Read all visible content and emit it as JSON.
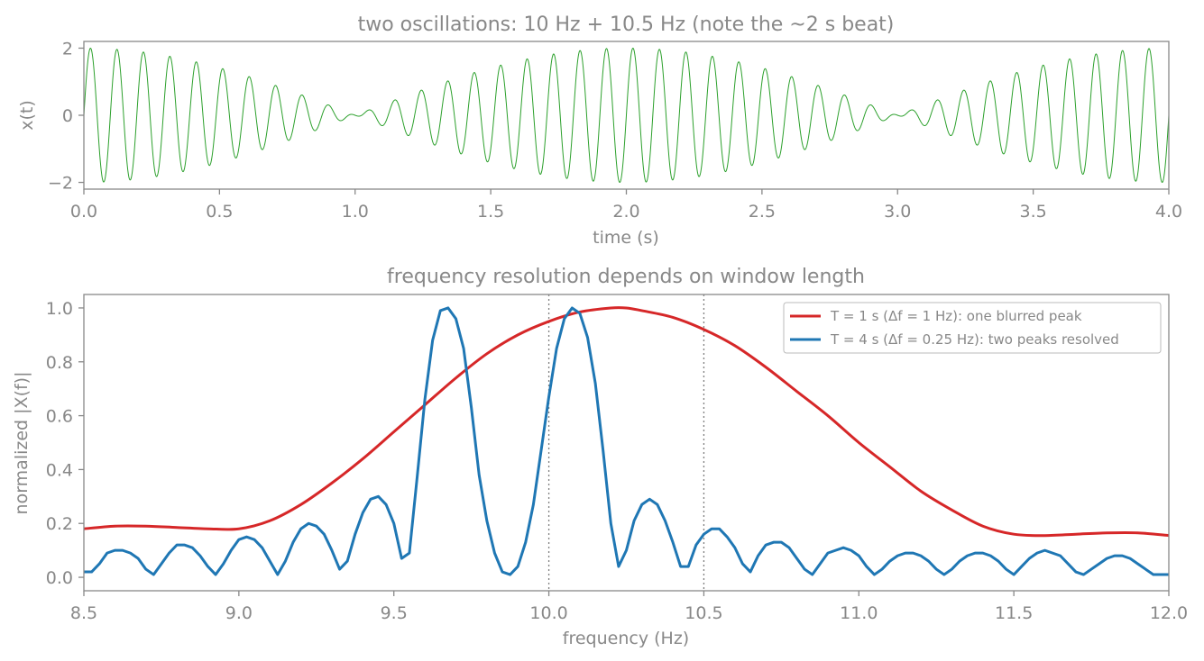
{
  "colors": {
    "signal": "#2ca02c",
    "short_window": "#d62728",
    "long_window": "#1f77b4",
    "spine": "#888888",
    "text": "#888888",
    "marker_line": "#808080"
  },
  "chart_data": [
    {
      "type": "line",
      "title": "two oscillations: 10 Hz + 10.5 Hz (note the ~2 s beat)",
      "xlabel": "time (s)",
      "ylabel": "x(t)",
      "xlim": [
        0,
        4
      ],
      "ylim": [
        -2.2,
        2.2
      ],
      "xticks": [
        "0.0",
        "0.5",
        "1.0",
        "1.5",
        "2.0",
        "2.5",
        "3.0",
        "3.5",
        "4.0"
      ],
      "yticks": [
        "2",
        "0",
        "−2"
      ],
      "grid": false,
      "series": [
        {
          "components_hz": [
            10,
            10.5
          ],
          "amplitude_each": 1,
          "beat_period_s": 2,
          "color_key": "signal"
        }
      ]
    },
    {
      "type": "line",
      "title": "frequency resolution depends on window length",
      "xlabel": "frequency (Hz)",
      "ylabel": "normalized |X(f)|",
      "xlim": [
        8.5,
        12.0
      ],
      "ylim": [
        -0.05,
        1.05
      ],
      "xticks": [
        "8.5",
        "9.0",
        "9.5",
        "10.0",
        "10.5",
        "11.0",
        "11.5",
        "12.0"
      ],
      "yticks": [
        "0.0",
        "0.2",
        "0.4",
        "0.6",
        "0.8",
        "1.0"
      ],
      "grid": false,
      "legend_position": "top-right",
      "vertical_markers_hz": [
        10.0,
        10.5
      ],
      "series": [
        {
          "name": "T = 1 s  (Δf = 1 Hz): one blurred peak",
          "color_key": "short_window",
          "x": [
            8.5,
            8.6,
            8.7,
            8.8,
            8.9,
            9.0,
            9.1,
            9.2,
            9.3,
            9.4,
            9.5,
            9.6,
            9.7,
            9.8,
            9.9,
            10.0,
            10.1,
            10.2,
            10.25,
            10.3,
            10.4,
            10.5,
            10.6,
            10.7,
            10.8,
            10.9,
            11.0,
            11.1,
            11.2,
            11.3,
            11.4,
            11.5,
            11.6,
            11.7,
            11.8,
            11.9,
            12.0
          ],
          "y": [
            0.18,
            0.19,
            0.19,
            0.185,
            0.18,
            0.18,
            0.21,
            0.27,
            0.35,
            0.44,
            0.54,
            0.64,
            0.74,
            0.83,
            0.9,
            0.95,
            0.985,
            1.0,
            1.0,
            0.99,
            0.965,
            0.92,
            0.86,
            0.78,
            0.69,
            0.6,
            0.5,
            0.41,
            0.32,
            0.25,
            0.19,
            0.16,
            0.155,
            0.16,
            0.165,
            0.165,
            0.155
          ]
        },
        {
          "name": "T = 4 s  (Δf = 0.25 Hz): two peaks resolved",
          "color_key": "long_window",
          "x": [
            8.5,
            8.525,
            8.55,
            8.575,
            8.6,
            8.625,
            8.65,
            8.675,
            8.7,
            8.725,
            8.75,
            8.775,
            8.8,
            8.825,
            8.85,
            8.875,
            8.9,
            8.925,
            8.95,
            8.975,
            9.0,
            9.025,
            9.05,
            9.075,
            9.1,
            9.125,
            9.15,
            9.175,
            9.2,
            9.225,
            9.25,
            9.275,
            9.3,
            9.325,
            9.35,
            9.375,
            9.4,
            9.425,
            9.45,
            9.475,
            9.5,
            9.525,
            9.55,
            9.575,
            9.6,
            9.625,
            9.65,
            9.675,
            9.7,
            9.725,
            9.75,
            9.775,
            9.8,
            9.825,
            9.85,
            9.875,
            9.9,
            9.925,
            9.95,
            9.975,
            10.0,
            10.025,
            10.05,
            10.075,
            10.1,
            10.125,
            10.15,
            10.175,
            10.2,
            10.225,
            10.25,
            10.275,
            10.3,
            10.325,
            10.35,
            10.375,
            10.4,
            10.425,
            10.45,
            10.475,
            10.5,
            10.525,
            10.55,
            10.575,
            10.6,
            10.625,
            10.65,
            10.675,
            10.7,
            10.725,
            10.75,
            10.775,
            10.8,
            10.825,
            10.85,
            10.875,
            10.9,
            10.925,
            10.95,
            10.975,
            11.0,
            11.025,
            11.05,
            11.075,
            11.1,
            11.125,
            11.15,
            11.175,
            11.2,
            11.225,
            11.25,
            11.275,
            11.3,
            11.325,
            11.35,
            11.375,
            11.4,
            11.425,
            11.45,
            11.475,
            11.5,
            11.525,
            11.55,
            11.575,
            11.6,
            11.625,
            11.65,
            11.675,
            11.7,
            11.725,
            11.75,
            11.775,
            11.8,
            11.825,
            11.85,
            11.875,
            11.9,
            11.925,
            11.95,
            11.975,
            12.0
          ],
          "y": [
            0.02,
            0.02,
            0.05,
            0.09,
            0.1,
            0.1,
            0.09,
            0.07,
            0.03,
            0.01,
            0.05,
            0.09,
            0.12,
            0.12,
            0.11,
            0.08,
            0.04,
            0.01,
            0.05,
            0.1,
            0.14,
            0.15,
            0.14,
            0.11,
            0.06,
            0.01,
            0.06,
            0.13,
            0.18,
            0.2,
            0.19,
            0.16,
            0.1,
            0.03,
            0.06,
            0.16,
            0.24,
            0.29,
            0.3,
            0.27,
            0.2,
            0.07,
            0.09,
            0.37,
            0.66,
            0.88,
            0.99,
            1.0,
            0.96,
            0.85,
            0.63,
            0.38,
            0.21,
            0.09,
            0.02,
            0.01,
            0.04,
            0.13,
            0.27,
            0.47,
            0.67,
            0.85,
            0.96,
            1.0,
            0.98,
            0.89,
            0.72,
            0.47,
            0.2,
            0.04,
            0.1,
            0.21,
            0.27,
            0.29,
            0.27,
            0.21,
            0.13,
            0.04,
            0.04,
            0.12,
            0.16,
            0.18,
            0.18,
            0.15,
            0.11,
            0.05,
            0.02,
            0.08,
            0.12,
            0.13,
            0.13,
            0.11,
            0.07,
            0.03,
            0.01,
            0.05,
            0.09,
            0.1,
            0.11,
            0.1,
            0.08,
            0.04,
            0.01,
            0.03,
            0.06,
            0.08,
            0.09,
            0.09,
            0.08,
            0.06,
            0.03,
            0.01,
            0.03,
            0.06,
            0.08,
            0.09,
            0.09,
            0.08,
            0.06,
            0.03,
            0.01,
            0.04,
            0.07,
            0.09,
            0.1,
            0.09,
            0.08,
            0.05,
            0.02,
            0.01,
            0.03,
            0.05,
            0.07,
            0.08,
            0.08,
            0.07,
            0.05,
            0.03,
            0.01,
            0.01,
            0.01
          ]
        }
      ]
    }
  ]
}
